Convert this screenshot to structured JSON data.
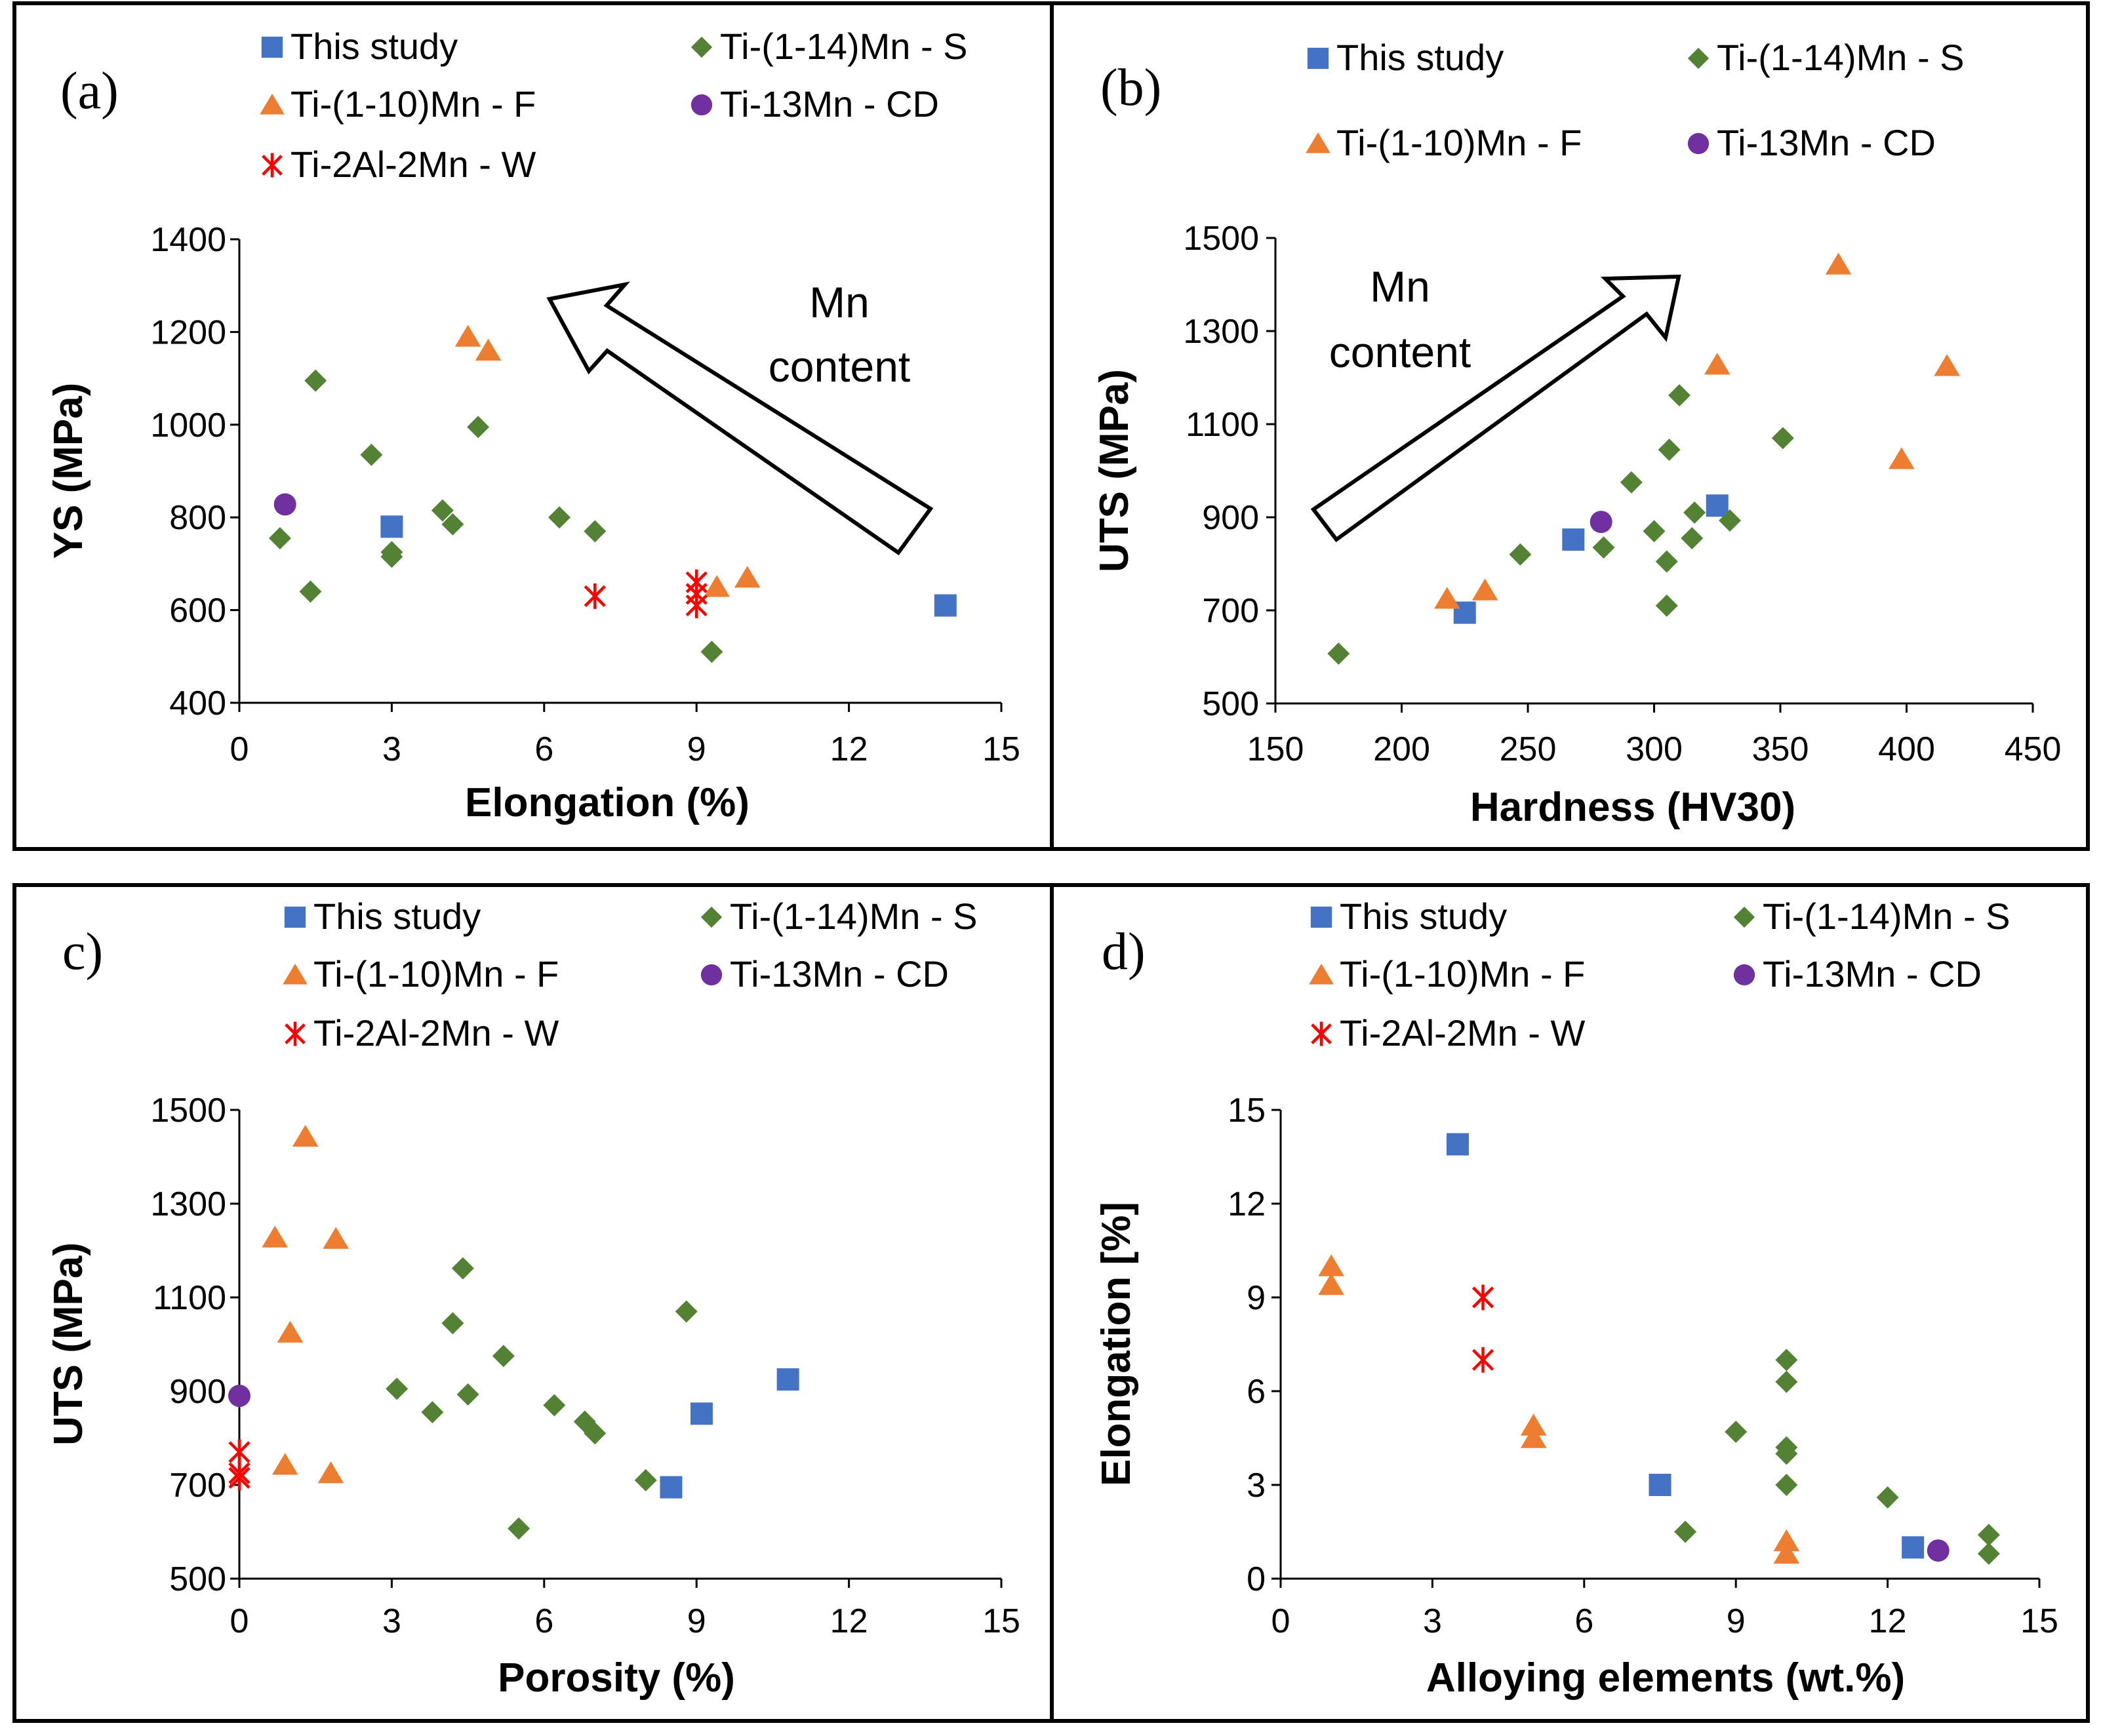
{
  "colors": {
    "this_study": "#4472C4",
    "ti_s": "#548235",
    "ti_f": "#ED7D31",
    "ti_cd": "#7030A0",
    "ti_w": "#FF0000"
  },
  "chart_data": [
    {
      "type": "scatter",
      "panel": "(a)",
      "xlabel": "Elongation (%)",
      "ylabel": "YS (MPa)",
      "xlim": [
        0,
        15
      ],
      "ylim": [
        400,
        1400
      ],
      "xticks": [
        "0",
        "3",
        "6",
        "9",
        "12",
        "15"
      ],
      "yticks": [
        "400",
        "600",
        "800",
        "1000",
        "1200",
        "1400"
      ],
      "annotation": [
        "Mn",
        "content"
      ],
      "series": [
        {
          "name": "This study",
          "marker": "square",
          "x": [
            3,
            13.9
          ],
          "y": [
            780,
            610
          ]
        },
        {
          "name": "Ti-(1-14)Mn - S",
          "marker": "diamond",
          "x": [
            0.8,
            1.4,
            1.5,
            2.6,
            3.0,
            3.0,
            4.0,
            4.2,
            4.7,
            6.3,
            7.0,
            9.3
          ],
          "y": [
            755,
            640,
            1095,
            935,
            725,
            715,
            815,
            785,
            995,
            800,
            770,
            510
          ]
        },
        {
          "name": "Ti-(1-10)Mn - F",
          "marker": "triangle",
          "x": [
            4.5,
            4.9,
            9.4,
            10.0
          ],
          "y": [
            1190,
            1160,
            650,
            670
          ]
        },
        {
          "name": "Ti-13Mn - CD",
          "marker": "circle",
          "x": [
            0.9
          ],
          "y": [
            828
          ]
        },
        {
          "name": "Ti-2Al-2Mn - W",
          "marker": "asterisk",
          "x": [
            7.0,
            9.0,
            9.0,
            9.0
          ],
          "y": [
            630,
            660,
            635,
            610
          ]
        }
      ]
    },
    {
      "type": "scatter",
      "panel": "(b)",
      "xlabel": "Hardness (HV30)",
      "ylabel": "UTS (MPa)",
      "xlim": [
        150,
        450
      ],
      "ylim": [
        500,
        1500
      ],
      "xticks": [
        "150",
        "200",
        "250",
        "300",
        "350",
        "400",
        "450"
      ],
      "yticks": [
        "500",
        "700",
        "900",
        "1100",
        "1300",
        "1500"
      ],
      "annotation": [
        "Mn",
        "content"
      ],
      "series": [
        {
          "name": "This study",
          "marker": "square",
          "x": [
            225,
            268,
            325
          ],
          "y": [
            695,
            852,
            925
          ]
        },
        {
          "name": "Ti-(1-14)Mn - S",
          "marker": "diamond",
          "x": [
            175,
            247,
            280,
            291,
            300,
            305,
            305,
            306,
            310,
            315,
            316,
            330,
            351
          ],
          "y": [
            607,
            820,
            835,
            975,
            870,
            805,
            710,
            1045,
            1162,
            855,
            910,
            893,
            1070
          ]
        },
        {
          "name": "Ti-(1-10)Mn - F",
          "marker": "triangle",
          "x": [
            218,
            233,
            325,
            373,
            398,
            416
          ],
          "y": [
            725,
            743,
            1228,
            1443,
            1025,
            1225
          ]
        },
        {
          "name": "Ti-13Mn - CD",
          "marker": "circle",
          "x": [
            279
          ],
          "y": [
            890
          ]
        }
      ]
    },
    {
      "type": "scatter",
      "panel": "c)",
      "xlabel": "Porosity (%)",
      "ylabel": "UTS (MPa)",
      "xlim": [
        0,
        15
      ],
      "ylim": [
        500,
        1500
      ],
      "xticks": [
        "0",
        "3",
        "6",
        "9",
        "12",
        "15"
      ],
      "yticks": [
        "500",
        "700",
        "900",
        "1100",
        "1300",
        "1500"
      ],
      "series": [
        {
          "name": "This study",
          "marker": "square",
          "x": [
            8.5,
            9.1,
            10.8
          ],
          "y": [
            695,
            852,
            925
          ]
        },
        {
          "name": "Ti-(1-14)Mn - S",
          "marker": "diamond",
          "x": [
            3.1,
            3.8,
            4.2,
            4.4,
            4.5,
            5.2,
            5.5,
            6.2,
            6.8,
            7.0,
            8.0,
            8.8
          ],
          "y": [
            905,
            855,
            1045,
            1162,
            893,
            975,
            607,
            870,
            835,
            810,
            710,
            1070
          ]
        },
        {
          "name": "Ti-(1-10)Mn - F",
          "marker": "triangle",
          "x": [
            0.7,
            0.9,
            1.0,
            1.3,
            1.8,
            1.9
          ],
          "y": [
            1228,
            743,
            1025,
            1443,
            725,
            1225
          ]
        },
        {
          "name": "Ti-13Mn - CD",
          "marker": "circle",
          "x": [
            0.0
          ],
          "y": [
            890
          ]
        },
        {
          "name": "Ti-2Al-2Mn - W",
          "marker": "asterisk",
          "x": [
            0.0,
            0.0,
            0.0
          ],
          "y": [
            770,
            725,
            715
          ]
        }
      ]
    },
    {
      "type": "scatter",
      "panel": "d)",
      "xlabel": "Alloying elements (wt.%)",
      "ylabel": "Elongation [%]",
      "xlim": [
        0,
        15
      ],
      "ylim": [
        0,
        15
      ],
      "xticks": [
        "0",
        "3",
        "6",
        "9",
        "12",
        "15"
      ],
      "yticks": [
        "0",
        "3",
        "6",
        "9",
        "12",
        "15"
      ],
      "series": [
        {
          "name": "This study",
          "marker": "square",
          "x": [
            3.5,
            7.5,
            12.5
          ],
          "y": [
            13.9,
            3.0,
            1.0
          ]
        },
        {
          "name": "Ti-(1-14)Mn - S",
          "marker": "diamond",
          "x": [
            8,
            9,
            10,
            10,
            10,
            10,
            10,
            12,
            14,
            14
          ],
          "y": [
            1.5,
            4.7,
            7.0,
            6.3,
            4.2,
            4.0,
            3.0,
            2.6,
            1.4,
            0.8
          ]
        },
        {
          "name": "Ti-(1-10)Mn - F",
          "marker": "triangle",
          "x": [
            1,
            1,
            5,
            5,
            10,
            10
          ],
          "y": [
            10.0,
            9.4,
            4.9,
            4.5,
            1.2,
            0.8
          ]
        },
        {
          "name": "Ti-13Mn - CD",
          "marker": "circle",
          "x": [
            13
          ],
          "y": [
            0.9
          ]
        },
        {
          "name": "Ti-2Al-2Mn - W",
          "marker": "asterisk",
          "x": [
            4,
            4
          ],
          "y": [
            9.0,
            7.0
          ]
        }
      ]
    }
  ]
}
